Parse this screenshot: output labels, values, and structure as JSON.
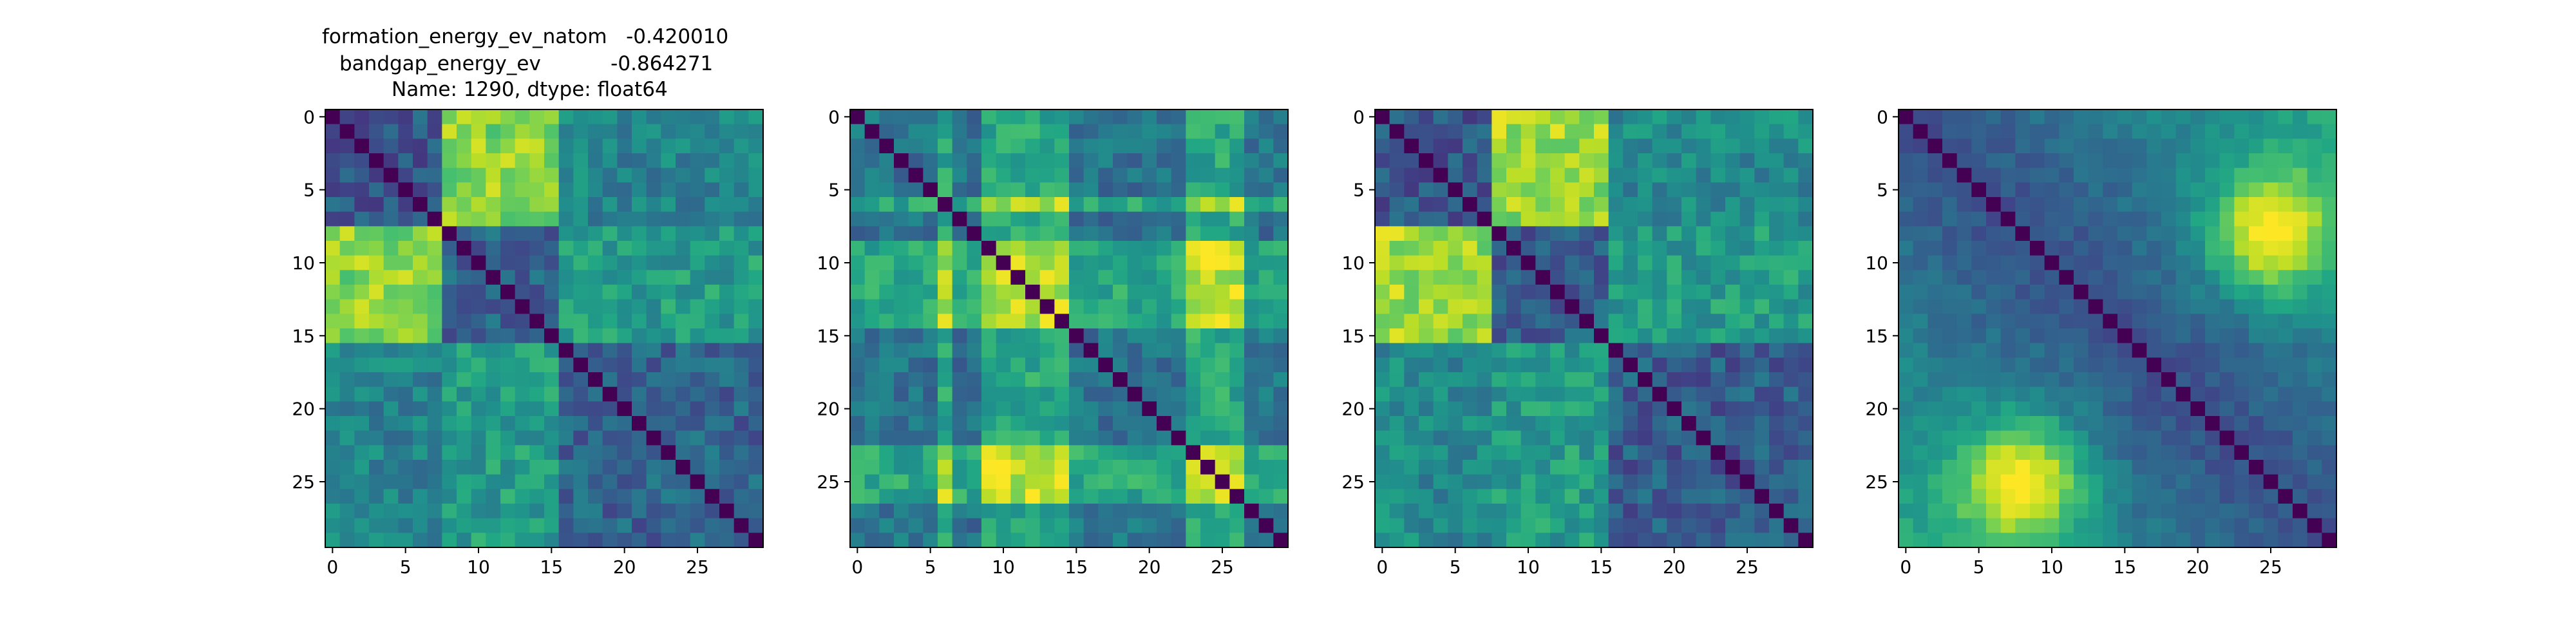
{
  "figure": {
    "title_lines": [
      "formation_energy_ev_natom   -0.420010",
      "bandgap_energy_ev           -0.864271",
      "Name: 1290, dtype: float64"
    ],
    "panel_count": 4
  },
  "chart_data": [
    {
      "type": "heatmap",
      "size": 30,
      "colormap": "viridis",
      "value_range": [
        0,
        1
      ],
      "xticks": [
        0,
        5,
        10,
        15,
        20,
        25
      ],
      "yticks": [
        0,
        5,
        10,
        15,
        20,
        25
      ],
      "pattern": "blocks",
      "blocks": [
        [
          0,
          7
        ],
        [
          8,
          15
        ],
        [
          16,
          29
        ]
      ],
      "block_levels": [
        [
          0.28,
          0.82,
          0.45
        ],
        [
          0.82,
          0.32,
          0.55
        ],
        [
          0.45,
          0.55,
          0.32
        ]
      ]
    },
    {
      "type": "heatmap",
      "size": 30,
      "colormap": "viridis",
      "value_range": [
        0,
        1
      ],
      "xticks": [
        0,
        5,
        10,
        15,
        20,
        25
      ],
      "yticks": [
        0,
        5,
        10,
        15,
        20,
        25
      ],
      "pattern": "stripes",
      "bright_indices": [
        6,
        9,
        10,
        11,
        12,
        13,
        14,
        23,
        24,
        25,
        26
      ]
    },
    {
      "type": "heatmap",
      "size": 30,
      "colormap": "viridis",
      "value_range": [
        0,
        1
      ],
      "xticks": [
        0,
        5,
        10,
        15,
        20,
        25
      ],
      "yticks": [
        0,
        5,
        10,
        15,
        20,
        25
      ],
      "pattern": "blocks",
      "blocks": [
        [
          0,
          7
        ],
        [
          8,
          15
        ],
        [
          16,
          29
        ]
      ],
      "block_levels": [
        [
          0.28,
          0.85,
          0.48
        ],
        [
          0.85,
          0.3,
          0.55
        ],
        [
          0.48,
          0.55,
          0.3
        ]
      ]
    },
    {
      "type": "heatmap",
      "size": 30,
      "colormap": "viridis",
      "value_range": [
        0,
        1
      ],
      "xticks": [
        0,
        5,
        10,
        15,
        20,
        25
      ],
      "yticks": [
        0,
        5,
        10,
        15,
        20,
        25
      ],
      "pattern": "smooth",
      "hotspot": [
        8,
        25
      ]
    }
  ]
}
